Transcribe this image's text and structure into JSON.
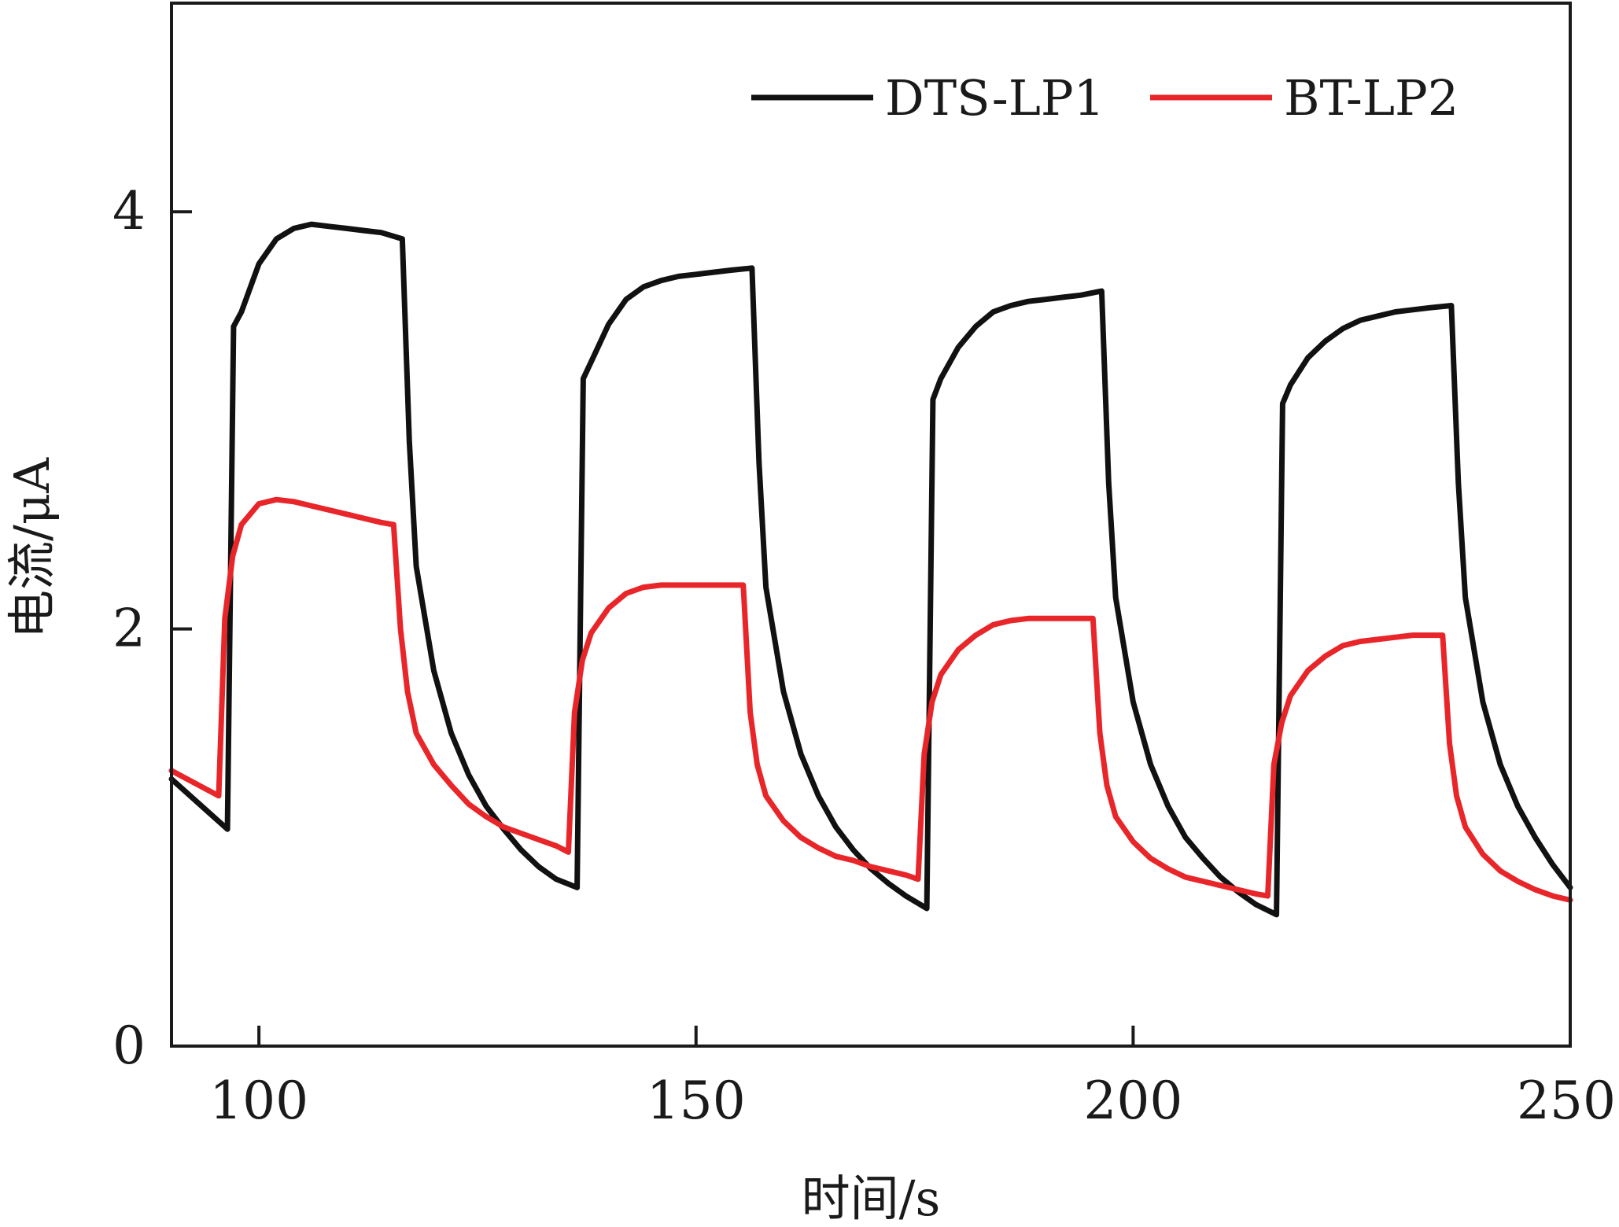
{
  "chart_data": {
    "type": "line",
    "title": "",
    "xlabel": "时间/s",
    "ylabel": "电流/μA",
    "xlim": [
      90,
      250
    ],
    "ylim": [
      0,
      5
    ],
    "xticks": [
      100,
      150,
      200,
      250
    ],
    "yticks": [
      0,
      2,
      4
    ],
    "grid": false,
    "legend_position": "top-right",
    "series": [
      {
        "name": "DTS-LP1",
        "color": "#111111",
        "x": [
          90,
          96.4,
          97.1,
          98,
          100,
          102,
          104,
          106,
          108,
          110,
          112,
          114,
          116.4,
          117.2,
          118,
          120,
          122,
          124,
          126,
          128,
          130,
          132,
          134,
          136.4,
          137.1,
          138,
          140,
          142,
          144,
          146,
          148,
          150,
          152,
          154,
          156.4,
          157.2,
          158,
          160,
          162,
          164,
          166,
          168,
          170,
          172,
          174,
          176.4,
          177.1,
          178,
          180,
          182,
          184,
          186,
          188,
          190,
          192,
          194,
          196.4,
          197.2,
          198,
          200,
          202,
          204,
          206,
          208,
          210,
          212,
          214,
          216.4,
          217.1,
          218,
          220,
          222,
          224,
          226,
          228,
          230,
          232,
          234,
          236.4,
          237.2,
          238,
          240,
          242,
          244,
          246,
          248,
          250
        ],
        "y": [
          1.28,
          1.04,
          3.45,
          3.52,
          3.75,
          3.87,
          3.92,
          3.94,
          3.93,
          3.92,
          3.91,
          3.9,
          3.87,
          2.9,
          2.3,
          1.8,
          1.5,
          1.3,
          1.15,
          1.04,
          0.94,
          0.86,
          0.8,
          0.76,
          3.2,
          3.28,
          3.46,
          3.58,
          3.64,
          3.67,
          3.69,
          3.7,
          3.71,
          3.72,
          3.73,
          2.8,
          2.2,
          1.7,
          1.4,
          1.2,
          1.05,
          0.94,
          0.85,
          0.78,
          0.72,
          0.66,
          3.1,
          3.2,
          3.35,
          3.45,
          3.52,
          3.55,
          3.57,
          3.58,
          3.59,
          3.6,
          3.62,
          2.7,
          2.15,
          1.65,
          1.35,
          1.15,
          1.0,
          0.9,
          0.81,
          0.74,
          0.68,
          0.63,
          3.08,
          3.17,
          3.3,
          3.38,
          3.44,
          3.48,
          3.5,
          3.52,
          3.53,
          3.54,
          3.55,
          2.7,
          2.15,
          1.65,
          1.35,
          1.15,
          1.0,
          0.87,
          0.76
        ]
      },
      {
        "name": "BT-LP2",
        "color": "#e8262a",
        "x": [
          90,
          95.4,
          96.1,
          97,
          98,
          100,
          102,
          104,
          106,
          108,
          110,
          112,
          114,
          115.4,
          116.2,
          117,
          118,
          120,
          122,
          124,
          126,
          128,
          130,
          132,
          134,
          135.4,
          136.1,
          137,
          138,
          140,
          142,
          144,
          146,
          148,
          150,
          152,
          154,
          155.4,
          156.2,
          157,
          158,
          160,
          162,
          164,
          166,
          168,
          170,
          172,
          174,
          175.4,
          176.1,
          177,
          178,
          180,
          182,
          184,
          186,
          188,
          190,
          192,
          194,
          195.4,
          196.2,
          197,
          198,
          200,
          202,
          204,
          206,
          208,
          210,
          212,
          214,
          215.4,
          216.1,
          217,
          218,
          220,
          222,
          224,
          226,
          228,
          230,
          232,
          234,
          235.4,
          236.2,
          237,
          238,
          240,
          242,
          244,
          246,
          248,
          250
        ],
        "y": [
          1.32,
          1.2,
          2.05,
          2.35,
          2.5,
          2.6,
          2.62,
          2.61,
          2.59,
          2.57,
          2.55,
          2.53,
          2.51,
          2.5,
          2.0,
          1.7,
          1.5,
          1.35,
          1.25,
          1.16,
          1.1,
          1.05,
          1.02,
          0.99,
          0.96,
          0.93,
          1.6,
          1.85,
          1.98,
          2.1,
          2.17,
          2.2,
          2.21,
          2.21,
          2.21,
          2.21,
          2.21,
          2.21,
          1.6,
          1.35,
          1.2,
          1.08,
          1.0,
          0.95,
          0.91,
          0.89,
          0.86,
          0.84,
          0.82,
          0.8,
          1.4,
          1.65,
          1.78,
          1.9,
          1.97,
          2.02,
          2.04,
          2.05,
          2.05,
          2.05,
          2.05,
          2.05,
          1.5,
          1.25,
          1.1,
          0.98,
          0.9,
          0.85,
          0.81,
          0.79,
          0.77,
          0.75,
          0.73,
          0.72,
          1.35,
          1.55,
          1.68,
          1.8,
          1.87,
          1.92,
          1.94,
          1.95,
          1.96,
          1.97,
          1.97,
          1.97,
          1.45,
          1.2,
          1.05,
          0.92,
          0.84,
          0.79,
          0.75,
          0.72,
          0.7
        ]
      }
    ]
  }
}
